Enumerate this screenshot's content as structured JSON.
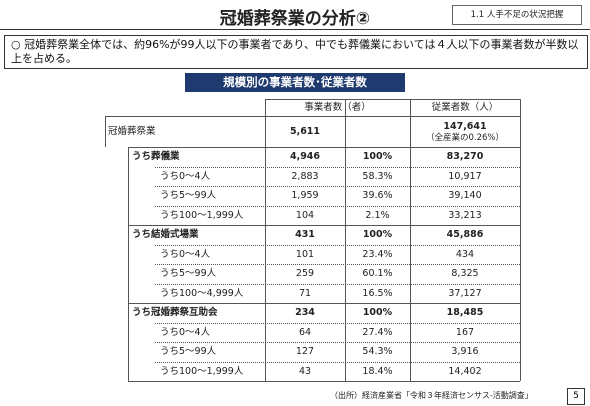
{
  "header": {
    "title": "冠婚葬祭業の分析②",
    "section": "1.1 人手不足の状況把握"
  },
  "summary": "○ 冠婚葬祭業全体では、約96%が99人以下の事業者であり、中でも葬儀業においては４人以下の事業者数が半数以上を占める。",
  "table": {
    "title": "規模別の事業者数･従業者数",
    "columns": [
      "事業者数（者）",
      "従業者数（人）"
    ],
    "total": {
      "label": "冠婚葬祭業",
      "count": "5,611",
      "employees": "147,641",
      "note": "（全産業の0.26%）"
    },
    "groups": [
      {
        "label": "うち葬儀業",
        "count": "4,946",
        "share": "100%",
        "employees": "83,270",
        "rows": [
          {
            "label": "うち0～4人",
            "count": "2,883",
            "share": "58.3%",
            "employees": "10,917"
          },
          {
            "label": "うち5～99人",
            "count": "1,959",
            "share": "39.6%",
            "employees": "39,140"
          },
          {
            "label": "うち100～1,999人",
            "count": "104",
            "share": "2.1%",
            "employees": "33,213"
          }
        ]
      },
      {
        "label": "うち結婚式場業",
        "count": "431",
        "share": "100%",
        "employees": "45,886",
        "rows": [
          {
            "label": "うち0～4人",
            "count": "101",
            "share": "23.4%",
            "employees": "434"
          },
          {
            "label": "うち5～99人",
            "count": "259",
            "share": "60.1%",
            "employees": "8,325"
          },
          {
            "label": "うち100～4,999人",
            "count": "71",
            "share": "16.5%",
            "employees": "37,127"
          }
        ]
      },
      {
        "label": "うち冠婚葬祭互助会",
        "count": "234",
        "share": "100%",
        "employees": "18,485",
        "rows": [
          {
            "label": "うち0～4人",
            "count": "64",
            "share": "27.4%",
            "employees": "167"
          },
          {
            "label": "うち5～99人",
            "count": "127",
            "share": "54.3%",
            "employees": "3,916"
          },
          {
            "label": "うち100～1,999人",
            "count": "43",
            "share": "18.4%",
            "employees": "14,402"
          }
        ]
      }
    ]
  },
  "footer": {
    "source": "（出所）経済産業省「令和３年経済センサス-活動調査」",
    "page": "5"
  }
}
